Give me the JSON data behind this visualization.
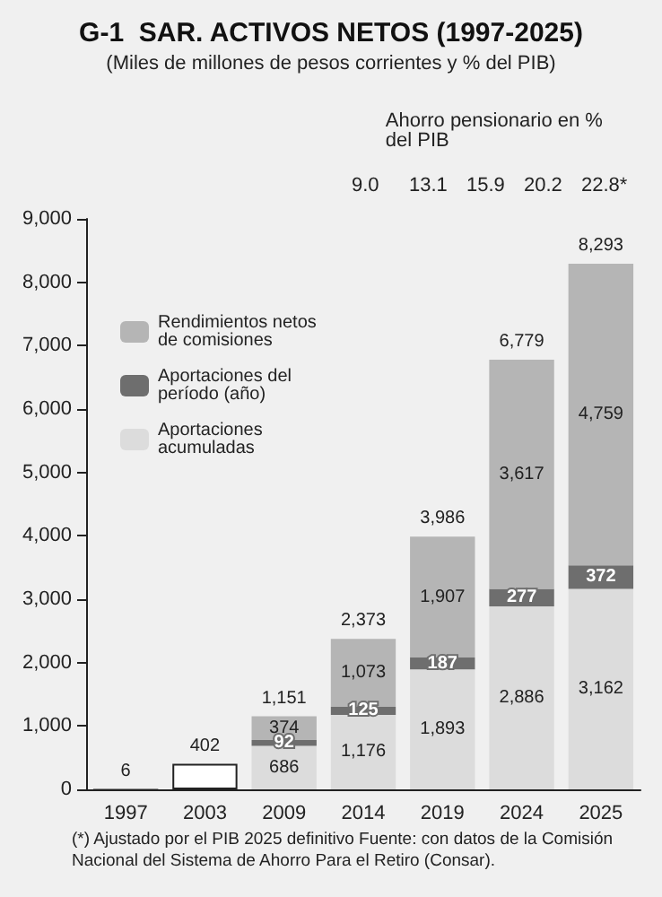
{
  "chart_data": {
    "type": "bar",
    "title": "G-1  SAR. ACTIVOS NETOS (1997-2025)",
    "subtitle": "(Miles de millones de pesos corrientes y % del PIB)",
    "categories": [
      "1997",
      "2003",
      "2009",
      "2014",
      "2019",
      "2024",
      "2025"
    ],
    "stacked": true,
    "series": [
      {
        "name": "Aportaciones acumuladas",
        "color": "#dcdcdc",
        "colors": [
          "#2b2b2b",
          "#ffffff",
          "#dcdcdc",
          "#dcdcdc",
          "#dcdcdc",
          "#dcdcdc",
          "#dcdcdc"
        ],
        "values": [
          6,
          402,
          686,
          1176,
          1893,
          2886,
          3162
        ],
        "value_labels": [
          "6",
          "402",
          "686",
          "1,176",
          "1,893",
          "2,886",
          "3,162"
        ]
      },
      {
        "name": "Aportaciones del período (año)",
        "color": "#6e6e6e",
        "values": [
          null,
          null,
          92,
          125,
          187,
          277,
          372
        ],
        "value_labels": [
          null,
          null,
          "92",
          "125",
          "187",
          "277",
          "372"
        ]
      },
      {
        "name": "Rendimientos netos de comisiones",
        "color": "#b5b5b5",
        "values": [
          null,
          null,
          374,
          1073,
          1907,
          3617,
          4759
        ],
        "value_labels": [
          null,
          null,
          "374",
          "1,073",
          "1,907",
          "3,617",
          "4,759"
        ]
      }
    ],
    "totals": [
      null,
      null,
      "1,151",
      "2,373",
      "3,986",
      "6,779",
      "8,293"
    ],
    "ylim": [
      0,
      9000
    ],
    "yticks": [
      0,
      {
        "value": 1000,
        "label": "1,000"
      },
      {
        "value": 2000,
        "label": "2,000"
      },
      {
        "value": 3000,
        "label": "3,000"
      },
      {
        "value": 4000,
        "label": "4,000"
      },
      {
        "value": 5000,
        "label": "5,000"
      },
      {
        "value": 6000,
        "label": "6,000"
      },
      {
        "value": 7000,
        "label": "7,000"
      },
      {
        "value": 8000,
        "label": "8,000"
      },
      {
        "value": 9000,
        "label": "9,000"
      }
    ],
    "grid": false,
    "legend": "top left",
    "annotations": [
      "Ahorro pensionario en % del PIB",
      "9.0",
      "13.1",
      "15.9",
      "20.2",
      "22.8*",
      "(*) Ajustado por el PIB 2025 definitivo Fuente: con datos de la Comisión Nacional del Sistema de Ahorro Para el Retiro (Consar)."
    ]
  }
}
